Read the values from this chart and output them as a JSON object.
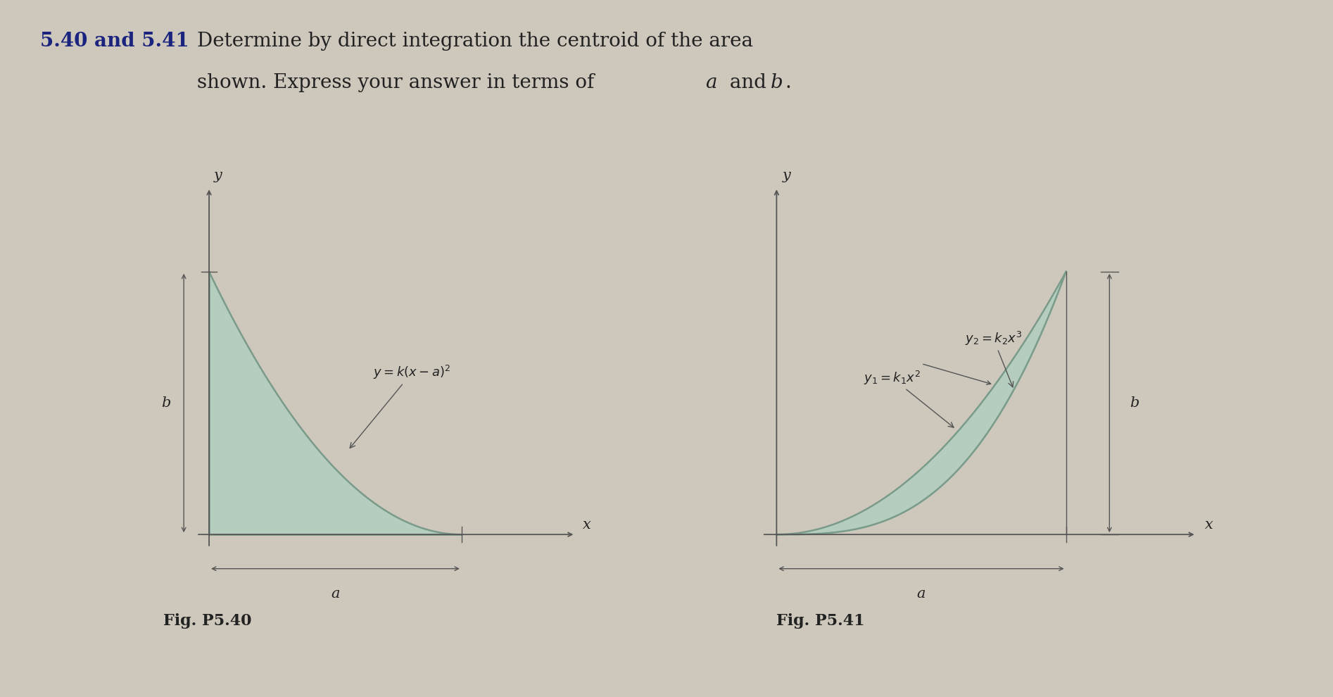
{
  "bg_color": "#cec8bc",
  "fill_color": "#b0cec0",
  "fill_alpha": 0.85,
  "curve_color": "#7a9a8a",
  "axis_color": "#555555",
  "text_color": "#222222",
  "title_bold": "5.40 and 5.41",
  "title_bold_color": "#1a237e",
  "fig_label_40": "Fig. P5.40",
  "fig_label_41": "Fig. P5.41",
  "label_b": "b",
  "label_a": "a",
  "label_x": "x",
  "label_y": "y"
}
